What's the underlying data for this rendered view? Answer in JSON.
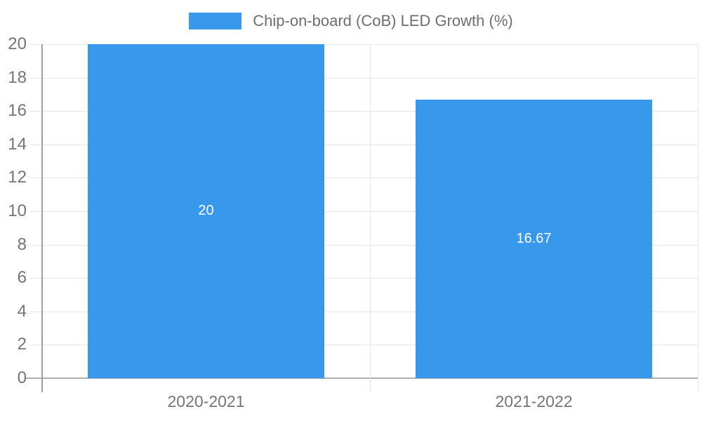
{
  "chart_data": {
    "type": "bar",
    "title": "Chip-on-board (CoB) LED Growth (%)",
    "categories": [
      "2020-2021",
      "2021-2022"
    ],
    "series": [
      {
        "name": "Chip-on-board (CoB) LED Growth (%)",
        "values": [
          20,
          16.67
        ]
      }
    ],
    "value_labels": [
      "20",
      "16.67"
    ],
    "ylim": [
      0,
      20
    ],
    "yticks": [
      0,
      2,
      4,
      6,
      8,
      10,
      12,
      14,
      16,
      18,
      20
    ],
    "ytick_labels": [
      "0",
      "2",
      "4",
      "6",
      "8",
      "10",
      "12",
      "14",
      "16",
      "18",
      "20"
    ],
    "grid": true,
    "legend_position": "top",
    "colors": {
      "bar": "#3899EC",
      "gridline": "#E6E6E6",
      "baseline": "#B0B0B0",
      "axis_line": "#9E9E9E",
      "tick_label": "#757575",
      "value_label": "#FFFFFF",
      "legend_text": "#6E6E6E",
      "background": "#FFFFFF"
    }
  }
}
